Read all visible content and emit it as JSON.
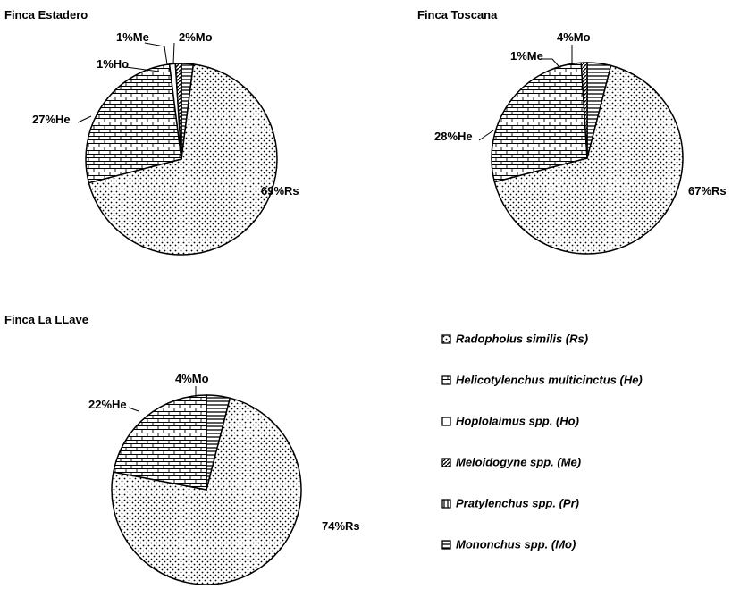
{
  "chart_data": [
    {
      "type": "pie",
      "title": "Finca Estadero",
      "slices": [
        {
          "code": "Mo",
          "value": 2,
          "label": "2%Mo"
        },
        {
          "code": "Rs",
          "value": 69,
          "label": "69%Rs"
        },
        {
          "code": "He",
          "value": 27,
          "label": "27%He"
        },
        {
          "code": "Ho",
          "value": 1,
          "label": "1%Ho"
        },
        {
          "code": "Me",
          "value": 1,
          "label": "1%Me"
        }
      ]
    },
    {
      "type": "pie",
      "title": "Finca Toscana",
      "slices": [
        {
          "code": "Mo",
          "value": 4,
          "label": "4%Mo"
        },
        {
          "code": "Rs",
          "value": 67,
          "label": "67%Rs"
        },
        {
          "code": "He",
          "value": 28,
          "label": "28%He"
        },
        {
          "code": "Me",
          "value": 1,
          "label": "1%Me"
        }
      ]
    },
    {
      "type": "pie",
      "title": "Finca La LLave",
      "slices": [
        {
          "code": "Mo",
          "value": 4,
          "label": "4%Mo"
        },
        {
          "code": "Rs",
          "value": 74,
          "label": "74%Rs"
        },
        {
          "code": "He",
          "value": 22,
          "label": "22%He"
        }
      ]
    }
  ],
  "legend": [
    {
      "code": "Rs",
      "text": "Radopholus similis (Rs)"
    },
    {
      "code": "He",
      "text": "Helicotylenchus multicinctus (He)"
    },
    {
      "code": "Ho",
      "text": "Hoplolaimus spp. (Ho)"
    },
    {
      "code": "Me",
      "text": "Meloidogyne spp. (Me)"
    },
    {
      "code": "Pr",
      "text": "Pratylenchus spp. (Pr)"
    },
    {
      "code": "Mo",
      "text": "Mononchus spp. (Mo)"
    }
  ]
}
